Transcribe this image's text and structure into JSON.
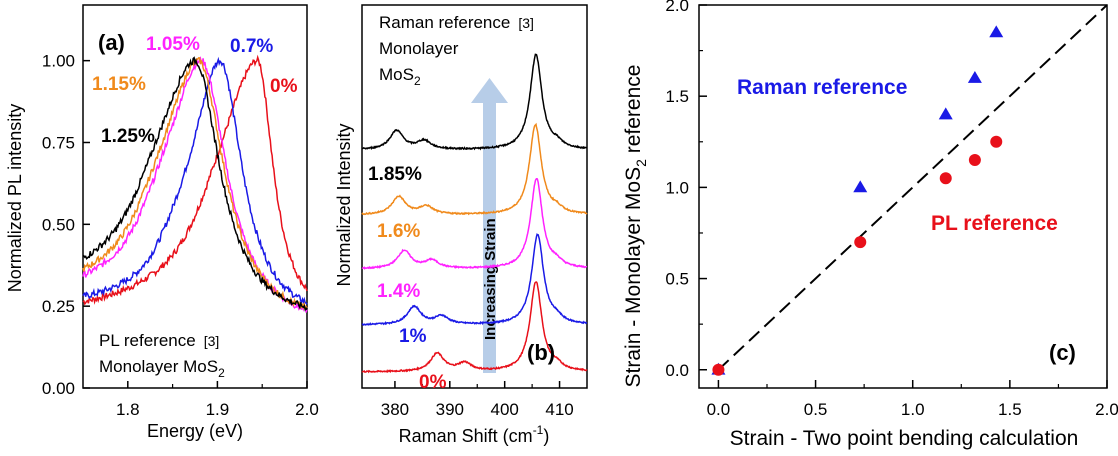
{
  "chart_data": [
    {
      "type": "line",
      "panel_label": "(a)",
      "xlabel": "Energy (eV)",
      "ylabel": "Normalized PL intensity",
      "xlim": [
        1.75,
        2.0
      ],
      "ylim": [
        0.0,
        1.17
      ],
      "xticks": [
        "1.8",
        "1.9",
        "2.0"
      ],
      "yticks": [
        "0.00",
        "0.25",
        "0.50",
        "0.75",
        "1.00"
      ],
      "series": [
        {
          "name": "0%",
          "color": "#e8101a",
          "peak": 1.945,
          "w_left": 0.055,
          "w_right": 0.021,
          "base_left": 0.205,
          "base_right": 0.2
        },
        {
          "name": "0.7%",
          "color": "#1a1ae6",
          "peak": 1.903,
          "w_left": 0.04,
          "w_right": 0.03,
          "base_left": 0.23,
          "base_right": 0.19
        },
        {
          "name": "1.05%",
          "color": "#ff22ff",
          "peak": 1.882,
          "w_left": 0.05,
          "w_right": 0.035,
          "base_left": 0.25,
          "base_right": 0.17
        },
        {
          "name": "1.15%",
          "color": "#f08a1c",
          "peak": 1.879,
          "w_left": 0.052,
          "w_right": 0.035,
          "base_left": 0.26,
          "base_right": 0.18
        },
        {
          "name": "1.25%",
          "color": "#000000",
          "peak": 1.875,
          "w_left": 0.055,
          "w_right": 0.034,
          "base_left": 0.28,
          "base_right": 0.19
        }
      ],
      "annotations": {
        "pl_ref": "PL reference",
        "ref_num": "[3]",
        "mono": "Monolayer MoS",
        "sub": "2"
      }
    },
    {
      "type": "line",
      "panel_label": "(b)",
      "xlabel_main": "Raman Shift (cm",
      "xlabel_sup": "-1",
      "xlabel_end": ")",
      "ylabel": "Normalized Intensity",
      "xlim": [
        374,
        415
      ],
      "xticks": [
        "380",
        "390",
        "400",
        "410"
      ],
      "arrow_label": "Increasing Strain",
      "series": [
        {
          "name": "0%",
          "color": "#e8101a",
          "e2g": 387.7,
          "a1g": 405.7
        },
        {
          "name": "1%",
          "color": "#1a1ae6",
          "e2g": 383.5,
          "a1g": 406.0
        },
        {
          "name": "1.4%",
          "color": "#ff22ff",
          "e2g": 381.7,
          "a1g": 405.8
        },
        {
          "name": "1.6%",
          "color": "#f08a1c",
          "e2g": 380.7,
          "a1g": 405.6
        },
        {
          "name": "1.85%",
          "color": "#000000",
          "e2g": 380.3,
          "a1g": 405.7
        }
      ],
      "annotations": {
        "raman_ref": "Raman reference",
        "ref_num": "[3]",
        "mono": "Monolayer",
        "mos": "MoS",
        "sub": "2"
      }
    },
    {
      "type": "scatter",
      "panel_label": "(c)",
      "xlabel": "Strain - Two point bending calculation",
      "ylabel_main": "Strain - Monolayer MoS",
      "ylabel_sub": "2",
      "ylabel_end": " reference",
      "xlim": [
        -0.1,
        2.0
      ],
      "ylim": [
        -0.1,
        2.0
      ],
      "xticks": [
        "0.0",
        "0.5",
        "1.0",
        "1.5",
        "2.0"
      ],
      "yticks": [
        "0.0",
        "0.5",
        "1.0",
        "1.5",
        "2.0"
      ],
      "series": [
        {
          "name": "Raman reference",
          "color": "#1a1ae6",
          "marker": "triangle",
          "x": [
            0.0,
            0.73,
            1.17,
            1.32,
            1.43
          ],
          "y": [
            0.0,
            1.0,
            1.4,
            1.6,
            1.85
          ]
        },
        {
          "name": "PL reference",
          "color": "#e8101a",
          "marker": "circle",
          "x": [
            0.0,
            0.73,
            1.17,
            1.32,
            1.43
          ],
          "y": [
            0.0,
            0.7,
            1.05,
            1.15,
            1.25
          ]
        }
      ],
      "reference_line": {
        "x": [
          0,
          2.0
        ],
        "y": [
          0,
          2.0
        ],
        "style": "dashed"
      }
    }
  ]
}
